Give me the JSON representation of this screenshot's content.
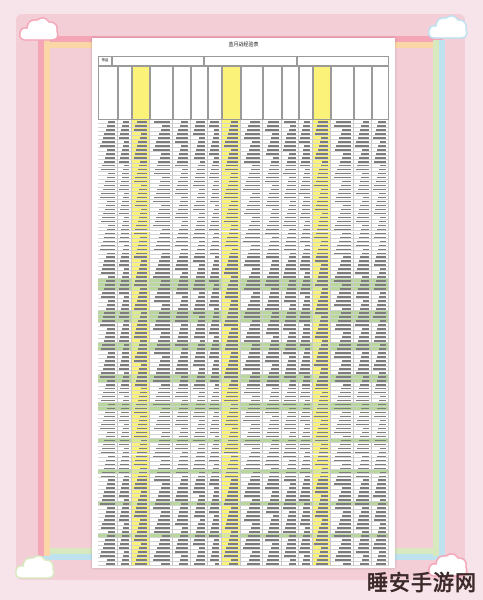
{
  "document": {
    "title": "蓝月战经验表",
    "column_header_1": "等级"
  },
  "watermark": {
    "text": "睡安手游网"
  },
  "colors": {
    "frame_pink": "#f3ced7",
    "highlight_yellow": "#fbf27a",
    "highlight_green": "#b8d79b"
  }
}
